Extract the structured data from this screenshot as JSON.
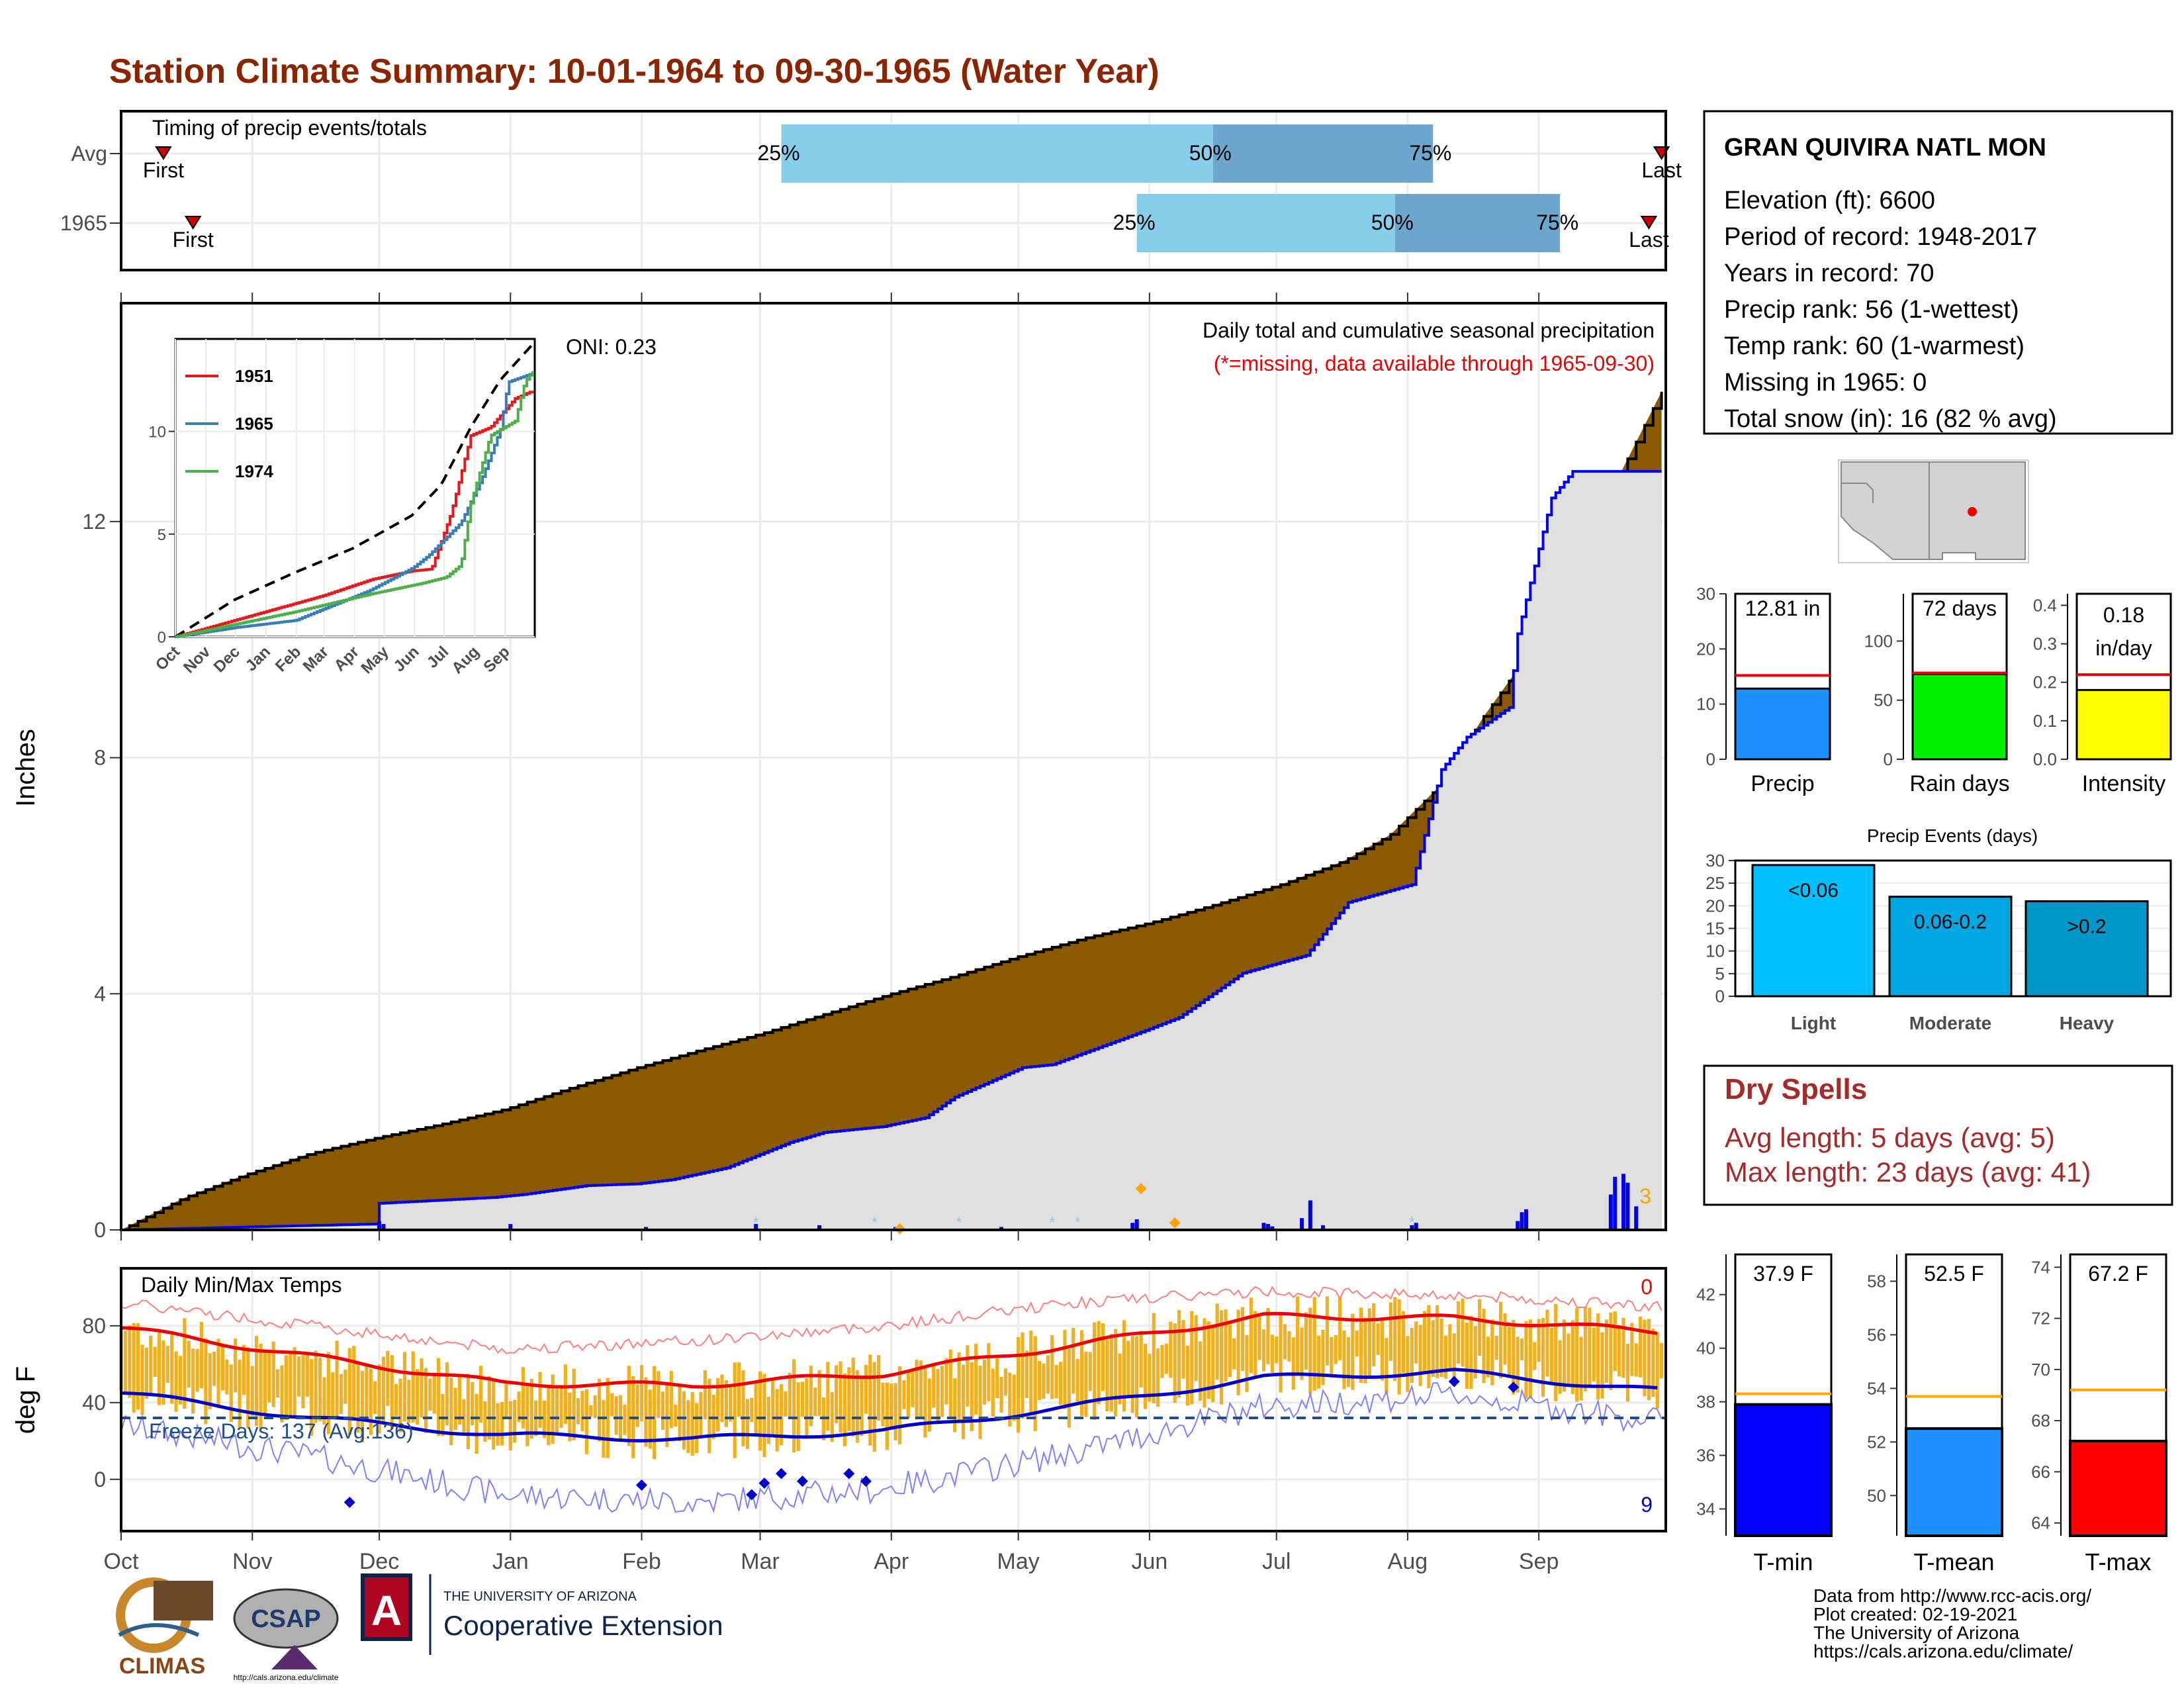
{
  "title": "Station Climate Summary: 10-01-1964 to 09-30-1965 (Water Year)",
  "months": [
    "Oct",
    "Nov",
    "Dec",
    "Jan",
    "Feb",
    "Mar",
    "Apr",
    "May",
    "Jun",
    "Jul",
    "Aug",
    "Sep"
  ],
  "timing": {
    "label": "Timing of precip events/totals",
    "rows": [
      {
        "name": "Avg",
        "first_day": 10,
        "q25": 156,
        "q50": 258,
        "q75": 310,
        "last_day": 364,
        "q25_label": "25%",
        "q50_label": "50%",
        "q75_label": "75%",
        "first_label": "First",
        "last_label": "Last"
      },
      {
        "name": "1965",
        "first_day": 17,
        "q25": 240,
        "q50": 301,
        "q75": 340,
        "last_day": 361,
        "q25_label": "25%",
        "q50_label": "50%",
        "q75_label": "75%",
        "first_label": "First",
        "last_label": "Last"
      }
    ]
  },
  "station": {
    "name": "GRAN QUIVIRA NATL MON",
    "lines": [
      "Elevation (ft): 6600",
      "Period of record: 1948-2017",
      "Years in record: 70",
      "Precip rank: 56 (1-wettest)",
      "Temp rank: 60 (1-warmest)",
      "Missing in 1965: 0",
      "Total snow (in): 16 (82 % avg)"
    ]
  },
  "precip_panel": {
    "ylabel": "Inches",
    "yticks": [
      0,
      4,
      8,
      12
    ],
    "ylim": [
      0,
      15.7
    ],
    "oni": "ONI: 0.23",
    "heading": "Daily total and cumulative seasonal precipitation",
    "missing_note": "(*=missing, data available through 1965-09-30)",
    "orange_count": "3",
    "colors": {
      "avg_fill": "#8B5A00",
      "year_fill": "#E0E0E0",
      "year_line": "#0000EE",
      "bars": "#0000EE"
    }
  },
  "chart_data": [
    {
      "type": "area",
      "name": "cumulative precipitation",
      "x_unit": "day of water year",
      "series": [
        {
          "name": "avg",
          "x": [
            0,
            15,
            30,
            45,
            61,
            75,
            91,
            106,
            122,
            137,
            151,
            166,
            182,
            197,
            212,
            228,
            243,
            258,
            274,
            289,
            300,
            312,
            322,
            335,
            345,
            364
          ],
          "y": [
            0,
            0.55,
            0.95,
            1.3,
            1.57,
            1.78,
            2.05,
            2.4,
            2.75,
            3.05,
            3.32,
            3.65,
            4.0,
            4.3,
            4.63,
            4.95,
            5.2,
            5.5,
            5.85,
            6.25,
            6.7,
            7.55,
            8.7,
            10.0,
            11.5,
            14.2
          ]
        },
        {
          "name": "1965",
          "x": [
            0,
            30,
            60,
            61,
            88,
            95,
            110,
            122,
            130,
            143,
            150,
            158,
            166,
            180,
            190,
            197,
            213,
            220,
            241,
            250,
            257,
            265,
            280,
            290,
            305,
            312,
            318,
            328,
            330,
            338,
            343,
            364
          ],
          "y": [
            0,
            0.05,
            0.1,
            0.45,
            0.55,
            0.6,
            0.75,
            0.78,
            0.85,
            1.05,
            1.25,
            1.48,
            1.65,
            1.75,
            1.9,
            2.25,
            2.75,
            2.8,
            3.35,
            3.6,
            3.95,
            4.35,
            4.65,
            5.55,
            5.85,
            7.8,
            8.35,
            8.85,
            10.1,
            12.4,
            12.85,
            12.85
          ]
        }
      ]
    },
    {
      "type": "bar",
      "name": "daily precipitation",
      "x_unit": "day of water year",
      "x": [
        61,
        62,
        92,
        124,
        150,
        165,
        183,
        208,
        239,
        240,
        270,
        271,
        272,
        279,
        281,
        284,
        305,
        306,
        330,
        331,
        332,
        352,
        353,
        355,
        356,
        358
      ],
      "y": [
        0.15,
        0.1,
        0.1,
        0.05,
        0.1,
        0.08,
        0.05,
        0.05,
        0.12,
        0.18,
        0.12,
        0.1,
        0.06,
        0.2,
        0.5,
        0.08,
        0.08,
        0.12,
        0.15,
        0.3,
        0.35,
        0.6,
        0.9,
        0.95,
        0.8,
        0.4
      ]
    },
    {
      "type": "line",
      "name": "Daily Min/Max Temps",
      "ylabel": "deg F",
      "yticks": [
        0,
        40,
        80
      ],
      "ylim": [
        -27,
        110
      ],
      "freeze_line": 32,
      "freeze_label": "Freeze Days: 137 (Avg:136)",
      "top_count": "0",
      "bottom_count": "9",
      "series": [
        {
          "name": "avg_max",
          "x": [
            0,
            45,
            90,
            135,
            180,
            225,
            270,
            315,
            364
          ],
          "y": [
            79,
            64,
            50,
            49,
            55,
            70,
            85,
            84,
            77
          ]
        },
        {
          "name": "avg_min",
          "x": [
            0,
            45,
            90,
            135,
            180,
            225,
            270,
            315,
            364
          ],
          "y": [
            45,
            32,
            23,
            21,
            25,
            38,
            53,
            56,
            46
          ]
        },
        {
          "name": "record_max",
          "x": [
            0,
            45,
            90,
            135,
            180,
            225,
            270,
            315,
            364
          ],
          "y": [
            92,
            80,
            68,
            72,
            80,
            92,
            98,
            96,
            90
          ]
        },
        {
          "name": "record_min",
          "x": [
            0,
            45,
            90,
            135,
            180,
            225,
            270,
            315,
            364
          ],
          "y": [
            28,
            12,
            -8,
            -12,
            -5,
            14,
            38,
            44,
            30
          ]
        }
      ]
    }
  ],
  "inset": {
    "xlabels": [
      "Oct",
      "Nov",
      "Dec",
      "Jan",
      "Feb",
      "Mar",
      "Apr",
      "May",
      "Jun",
      "Jul",
      "Aug",
      "Sep"
    ],
    "yticks": [
      0,
      5,
      10
    ],
    "ylim": [
      0,
      14.5
    ],
    "legend": [
      {
        "name": "1951",
        "color": "#E41A1C"
      },
      {
        "name": "1965",
        "color": "#377EB8"
      },
      {
        "name": "1974",
        "color": "#4DAF4A"
      }
    ],
    "series": [
      {
        "name": "avg",
        "x": [
          0,
          60,
          120,
          180,
          240,
          270,
          300,
          330,
          364
        ],
        "y": [
          0,
          1.8,
          3.1,
          4.3,
          5.9,
          7.4,
          10.2,
          12.5,
          14.3
        ]
      },
      {
        "name": "1951",
        "x": [
          0,
          90,
          150,
          200,
          240,
          260,
          280,
          300,
          320,
          345,
          364
        ],
        "y": [
          0,
          1.2,
          2.0,
          2.8,
          3.2,
          3.3,
          6.0,
          9.8,
          10.2,
          11.6,
          12.0
        ]
      },
      {
        "name": "1965",
        "x": [
          0,
          61,
          122,
          197,
          241,
          257,
          290,
          312,
          330,
          338,
          364
        ],
        "y": [
          0,
          0.45,
          0.8,
          2.25,
          3.35,
          3.95,
          5.55,
          7.8,
          10.1,
          12.4,
          12.85
        ]
      },
      {
        "name": "1974",
        "x": [
          0,
          60,
          120,
          200,
          250,
          275,
          290,
          300,
          320,
          345,
          355,
          364
        ],
        "y": [
          0,
          0.6,
          1.2,
          2.1,
          2.6,
          2.9,
          3.5,
          6.5,
          9.8,
          10.5,
          12.4,
          13.0
        ]
      }
    ]
  },
  "bars_precip": {
    "label": "Precip",
    "value_text": "12.81 in",
    "value": 12.81,
    "avg": 15.2,
    "yticks": [
      0,
      10,
      20,
      30
    ],
    "ylim": [
      0,
      30
    ],
    "color": "#1E90FF"
  },
  "bars_raindays": {
    "label": "Rain days",
    "value_text": "72 days",
    "value": 72,
    "avg": 73,
    "yticks": [
      0,
      50,
      100
    ],
    "ylim": [
      0,
      140
    ],
    "color": "#00EE00"
  },
  "bars_intensity": {
    "label": "Intensity",
    "value_text": "0.18",
    "value_text2": "in/day",
    "value": 0.18,
    "avg": 0.22,
    "yticks": [
      "0.0",
      "0.1",
      "0.2",
      "0.3",
      "0.4"
    ],
    "ylim": [
      0,
      0.43
    ],
    "color": "#FFFF00"
  },
  "events": {
    "title": "Precip Events (days)",
    "yticks": [
      0,
      5,
      10,
      15,
      20,
      25,
      30
    ],
    "ylim": [
      0,
      30
    ],
    "bars": [
      {
        "category": "Light",
        "label": "<0.06",
        "value": 29,
        "color": "#00BFFF"
      },
      {
        "category": "Moderate",
        "label": "0.06-0.2",
        "value": 22,
        "color": "#00A7E1"
      },
      {
        "category": "Heavy",
        "label": ">0.2",
        "value": 21,
        "color": "#0096C7"
      }
    ]
  },
  "dry_spells": {
    "title": "Dry Spells",
    "avg_line": "Avg length: 5 days (avg: 5)",
    "max_line": "Max length: 23 days (avg: 41)"
  },
  "temps": [
    {
      "label": "T-min",
      "value_text": "37.9 F",
      "value": 37.9,
      "avg": 38.3,
      "ylim": [
        33,
        43.5
      ],
      "yticks": [
        34,
        36,
        38,
        40,
        42
      ],
      "color": "#0000FF"
    },
    {
      "label": "T-mean",
      "value_text": "52.5 F",
      "value": 52.5,
      "avg": 53.7,
      "ylim": [
        48.5,
        59
      ],
      "yticks": [
        50,
        52,
        54,
        56,
        58
      ],
      "color": "#1E90FF"
    },
    {
      "label": "T-max",
      "value_text": "67.2 F",
      "value": 67.2,
      "avg": 69.2,
      "ylim": [
        63.5,
        74.5
      ],
      "yticks": [
        64,
        66,
        68,
        70,
        72,
        74
      ],
      "color": "#FF0000"
    }
  ],
  "footer": {
    "lines": [
      "Data from http://www.rcc-acis.org/",
      "Plot created: 02-19-2021",
      "The University of Arizona",
      "https://cals.arizona.edu/climate/"
    ],
    "logo_climas": "CLIMAS",
    "logo_csap": "CSAP",
    "logo_csap_url": "http://cals.arizona.edu/climate",
    "logo_ua_small": "THE UNIVERSITY OF ARIZONA",
    "logo_ua_big": "Cooperative Extension"
  }
}
